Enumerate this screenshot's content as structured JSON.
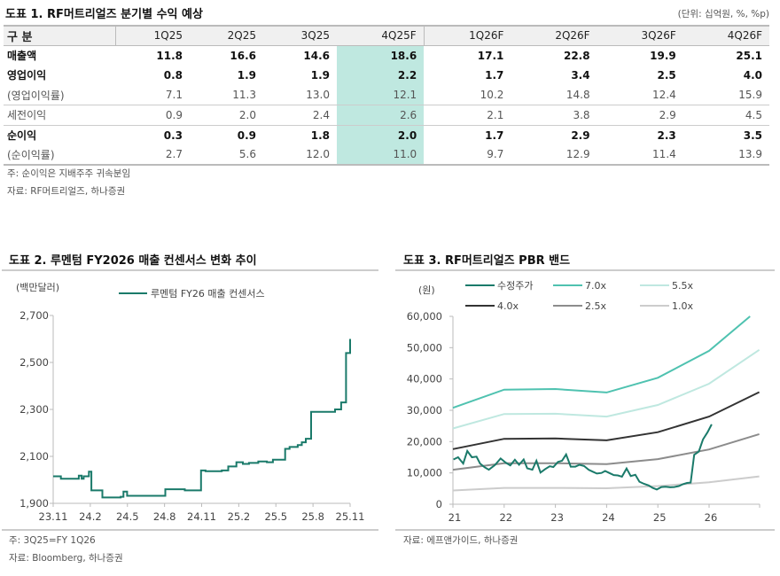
{
  "table": {
    "title": "도표 1. RF머트리얼즈 분기별 수익 예상",
    "unit": "(단위: 십억원, %, %p)",
    "header": [
      "구 분",
      "1Q25",
      "2Q25",
      "3Q25",
      "4Q25F",
      "1Q26F",
      "2Q26F",
      "3Q26F",
      "4Q26F"
    ],
    "rows": [
      {
        "label": "매출액",
        "values": [
          "11.8",
          "16.6",
          "14.6",
          "18.6",
          "17.1",
          "22.8",
          "19.9",
          "25.1"
        ]
      },
      {
        "label": "영업이익",
        "values": [
          "0.8",
          "1.9",
          "1.9",
          "2.2",
          "1.7",
          "3.4",
          "2.5",
          "4.0"
        ]
      },
      {
        "label": "(영업이익률)",
        "values": [
          "7.1",
          "11.3",
          "13.0",
          "12.1",
          "10.2",
          "14.8",
          "12.4",
          "15.9"
        ]
      },
      {
        "label": "세전이익",
        "values": [
          "0.9",
          "2.0",
          "2.4",
          "2.6",
          "2.1",
          "3.8",
          "2.9",
          "4.5"
        ]
      },
      {
        "label": "순이익",
        "values": [
          "0.3",
          "0.9",
          "1.8",
          "2.0",
          "1.7",
          "2.9",
          "2.3",
          "3.5"
        ]
      },
      {
        "label": "(순이익률)",
        "values": [
          "2.7",
          "5.6",
          "12.0",
          "11.0",
          "9.7",
          "12.9",
          "11.4",
          "13.9"
        ]
      }
    ],
    "highlight_color": "#bfe8e0",
    "note": "주: 순이익은 지배주주 귀속분임",
    "source": "자료: RF머트리얼즈, 하나증권"
  },
  "chart_data": [
    {
      "type": "line",
      "title": "도표 2. 루멘텀 FY2026 매출 컨센서스 변화 추이",
      "ylabel": "(백만달러)",
      "ylim": [
        1900,
        2700
      ],
      "yticks": [
        "1,900",
        "2,100",
        "2,300",
        "2,500",
        "2,700"
      ],
      "xticks": [
        "23.11",
        "24.2",
        "24.5",
        "24.8",
        "24.11",
        "25.2",
        "25.5",
        "25.8",
        "25.11"
      ],
      "legend": "top",
      "series": [
        {
          "name": "루멘텀 FY26 매출 컨센서스",
          "color": "#1a7a6a",
          "step": true,
          "points": [
            [
              "2023-11-01",
              2015
            ],
            [
              "2023-11-20",
              2005
            ],
            [
              "2024-01-03",
              2018
            ],
            [
              "2024-01-10",
              2005
            ],
            [
              "2024-01-15",
              2015
            ],
            [
              "2024-01-28",
              2035
            ],
            [
              "2024-02-03",
              1955
            ],
            [
              "2024-03-01",
              1925
            ],
            [
              "2024-04-15",
              1928
            ],
            [
              "2024-04-22",
              1950
            ],
            [
              "2024-05-01",
              1932
            ],
            [
              "2024-07-28",
              1932
            ],
            [
              "2024-08-03",
              1960
            ],
            [
              "2024-09-20",
              1955
            ],
            [
              "2024-10-30",
              2040
            ],
            [
              "2024-11-10",
              2037
            ],
            [
              "2024-12-20",
              2040
            ],
            [
              "2025-01-05",
              2057
            ],
            [
              "2025-01-25",
              2075
            ],
            [
              "2025-02-10",
              2068
            ],
            [
              "2025-02-25",
              2072
            ],
            [
              "2025-03-20",
              2078
            ],
            [
              "2025-04-10",
              2075
            ],
            [
              "2025-04-25",
              2086
            ],
            [
              "2025-05-25",
              2132
            ],
            [
              "2025-06-05",
              2140
            ],
            [
              "2025-06-25",
              2148
            ],
            [
              "2025-07-05",
              2160
            ],
            [
              "2025-07-15",
              2175
            ],
            [
              "2025-07-28",
              2290
            ],
            [
              "2025-09-25",
              2300
            ],
            [
              "2025-10-10",
              2330
            ],
            [
              "2025-10-22",
              2540
            ],
            [
              "2025-11-01",
              2600
            ]
          ]
        }
      ],
      "note": "주: 3Q25=FY 1Q26",
      "source": "자료: Bloomberg, 하나증권"
    },
    {
      "type": "line",
      "title": "도표 3. RF머트리얼즈 PBR 밴드",
      "ylabel": "(원)",
      "ylim": [
        0,
        60000
      ],
      "yticks": [
        "0",
        "10,000",
        "20,000",
        "30,000",
        "40,000",
        "50,000",
        "60,000"
      ],
      "xticks": [
        "21",
        "22",
        "23",
        "24",
        "25",
        "26"
      ],
      "legend": "top",
      "series": [
        {
          "name": "수정주가",
          "color": "#1a7a6a",
          "x": [
            21.01,
            21.1,
            21.2,
            21.28,
            21.37,
            21.46,
            21.53,
            21.62,
            21.7,
            21.82,
            21.93,
            22.03,
            22.12,
            22.21,
            22.29,
            22.38,
            22.45,
            22.55,
            22.63,
            22.71,
            22.8,
            22.89,
            22.96,
            23.05,
            23.13,
            23.21,
            23.3,
            23.39,
            23.47,
            23.56,
            23.65,
            23.73,
            23.81,
            23.9,
            23.97,
            24.05,
            24.14,
            24.22,
            24.3,
            24.39,
            24.47,
            24.56,
            24.64,
            24.73,
            24.82,
            24.9,
            24.98,
            25.07,
            25.15,
            25.24,
            25.32,
            25.41,
            25.49,
            25.57,
            25.64,
            25.71,
            25.8,
            25.88,
            25.97,
            26.05
          ],
          "y": [
            14300,
            15000,
            13000,
            17000,
            15000,
            15200,
            13000,
            11800,
            11000,
            12500,
            14600,
            13300,
            12400,
            14200,
            12600,
            14300,
            11500,
            11000,
            13900,
            10100,
            11200,
            12100,
            11900,
            13500,
            13900,
            15900,
            12000,
            12000,
            12600,
            12200,
            11000,
            10400,
            9800,
            10000,
            10600,
            10000,
            9300,
            9200,
            8800,
            11400,
            9000,
            9400,
            7200,
            6500,
            6000,
            5200,
            4700,
            5500,
            5600,
            5400,
            5500,
            5800,
            6400,
            6800,
            6900,
            15800,
            16800,
            20700,
            23000,
            25500
          ]
        },
        {
          "name": "7.0x",
          "color": "#4fc2b0",
          "x": [
            21,
            22,
            23,
            24,
            25,
            26,
            26.8
          ],
          "y": [
            30800,
            36600,
            36800,
            35700,
            40400,
            49000,
            60000
          ]
        },
        {
          "name": "5.5x",
          "color": "#bfe8e0",
          "x": [
            21,
            22,
            23,
            24,
            25,
            26,
            26.98
          ],
          "y": [
            24200,
            28800,
            28900,
            28000,
            31700,
            38500,
            49300
          ]
        },
        {
          "name": "4.0x",
          "color": "#333333",
          "x": [
            21,
            22,
            23,
            24,
            25,
            26,
            26.98
          ],
          "y": [
            17600,
            20900,
            21000,
            20400,
            23000,
            28000,
            35800
          ]
        },
        {
          "name": "2.5x",
          "color": "#8c8c8c",
          "x": [
            21,
            22,
            23,
            24,
            25,
            26,
            26.98
          ],
          "y": [
            11000,
            13100,
            13100,
            12800,
            14400,
            17500,
            22400
          ]
        },
        {
          "name": "1.0x",
          "color": "#cccccc",
          "x": [
            21,
            22,
            23,
            24,
            25,
            26,
            26.98
          ],
          "y": [
            4400,
            5200,
            5200,
            5100,
            5800,
            7000,
            8900
          ]
        }
      ],
      "source": "자료: 에프앤가이드, 하나증권"
    }
  ]
}
